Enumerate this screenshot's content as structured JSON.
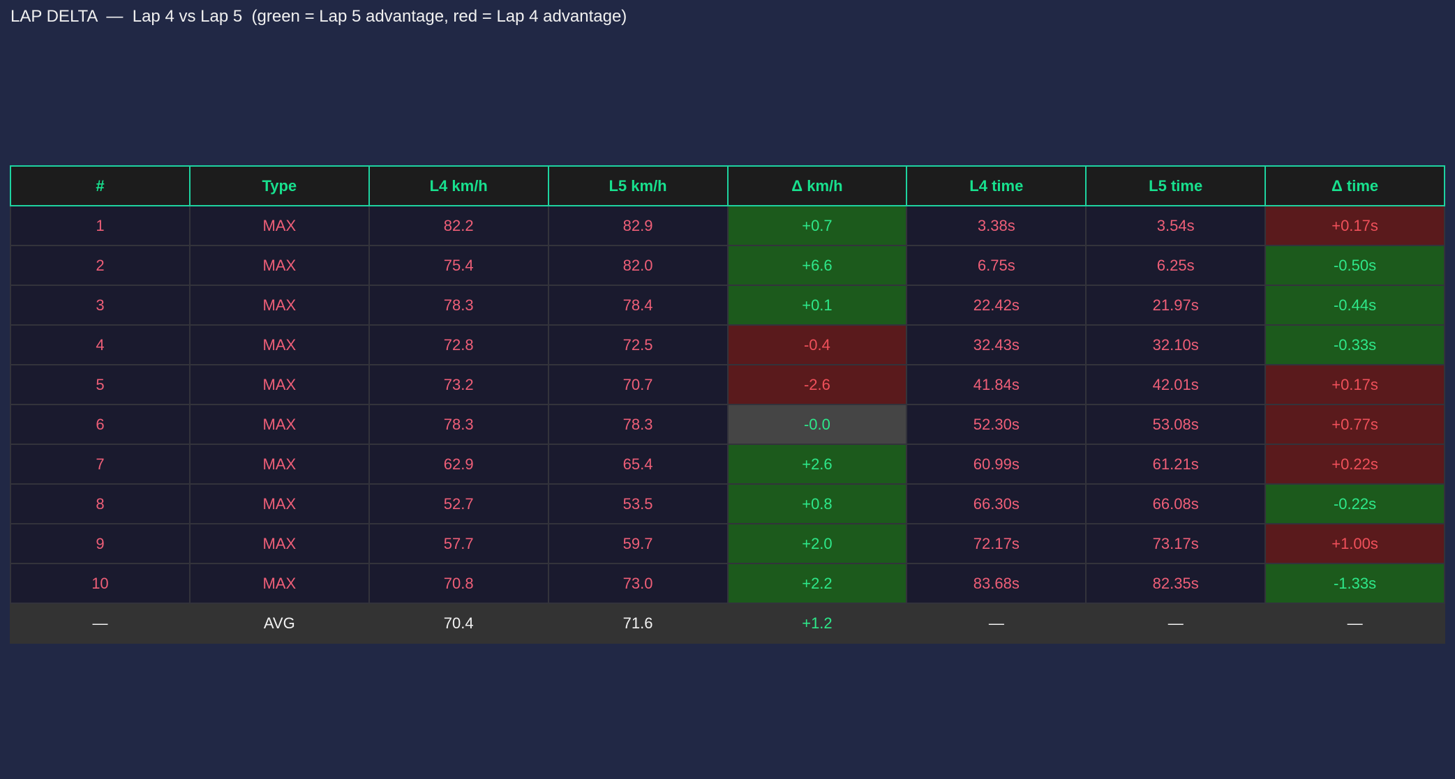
{
  "title": "LAP DELTA  —  Lap 4 vs Lap 5  (green = Lap 5 advantage, red = Lap 4 advantage)",
  "colors": {
    "background": "#212845",
    "header_text": "#18e08e",
    "header_border": "#1ed3a0",
    "cell_text": "#ef5f78",
    "advantage_lap5_bg": "#1c5a1c",
    "advantage_lap4_bg": "#5a1a1c",
    "neutral_bg": "#454545"
  },
  "table": {
    "headers": [
      "#",
      "Type",
      "L4 km/h",
      "L5 km/h",
      "Δ km/h",
      "L4 time",
      "L5 time",
      "Δ time"
    ],
    "rows": [
      [
        "1",
        "MAX",
        "82.2",
        "82.9",
        "+0.7",
        "3.38s",
        "3.54s",
        "+0.17s"
      ],
      [
        "2",
        "MAX",
        "75.4",
        "82.0",
        "+6.6",
        "6.75s",
        "6.25s",
        "-0.50s"
      ],
      [
        "3",
        "MAX",
        "78.3",
        "78.4",
        "+0.1",
        "22.42s",
        "21.97s",
        "-0.44s"
      ],
      [
        "4",
        "MAX",
        "72.8",
        "72.5",
        "-0.4",
        "32.43s",
        "32.10s",
        "-0.33s"
      ],
      [
        "5",
        "MAX",
        "73.2",
        "70.7",
        "-2.6",
        "41.84s",
        "42.01s",
        "+0.17s"
      ],
      [
        "6",
        "MAX",
        "78.3",
        "78.3",
        "-0.0",
        "52.30s",
        "53.08s",
        "+0.77s"
      ],
      [
        "7",
        "MAX",
        "62.9",
        "65.4",
        "+2.6",
        "60.99s",
        "61.21s",
        "+0.22s"
      ],
      [
        "8",
        "MAX",
        "52.7",
        "53.5",
        "+0.8",
        "66.30s",
        "66.08s",
        "-0.22s"
      ],
      [
        "9",
        "MAX",
        "57.7",
        "59.7",
        "+2.0",
        "72.17s",
        "73.17s",
        "+1.00s"
      ],
      [
        "10",
        "MAX",
        "70.8",
        "73.0",
        "+2.2",
        "83.68s",
        "82.35s",
        "-1.33s"
      ]
    ],
    "cell_status": [
      [
        "",
        "",
        "",
        "",
        "lap5",
        "",
        "",
        "lap4"
      ],
      [
        "",
        "",
        "",
        "",
        "lap5",
        "",
        "",
        "lap5"
      ],
      [
        "",
        "",
        "",
        "",
        "lap5",
        "",
        "",
        "lap5"
      ],
      [
        "",
        "",
        "",
        "",
        "lap4",
        "",
        "",
        "lap5"
      ],
      [
        "",
        "",
        "",
        "",
        "lap4",
        "",
        "",
        "lap4"
      ],
      [
        "",
        "",
        "",
        "",
        "neutral",
        "",
        "",
        "lap4"
      ],
      [
        "",
        "",
        "",
        "",
        "lap5",
        "",
        "",
        "lap4"
      ],
      [
        "",
        "",
        "",
        "",
        "lap5",
        "",
        "",
        "lap5"
      ],
      [
        "",
        "",
        "",
        "",
        "lap5",
        "",
        "",
        "lap4"
      ],
      [
        "",
        "",
        "",
        "",
        "lap5",
        "",
        "",
        "lap5"
      ]
    ],
    "summary": [
      "—",
      "AVG",
      "70.4",
      "71.6",
      "+1.2",
      "—",
      "—",
      "—"
    ]
  }
}
